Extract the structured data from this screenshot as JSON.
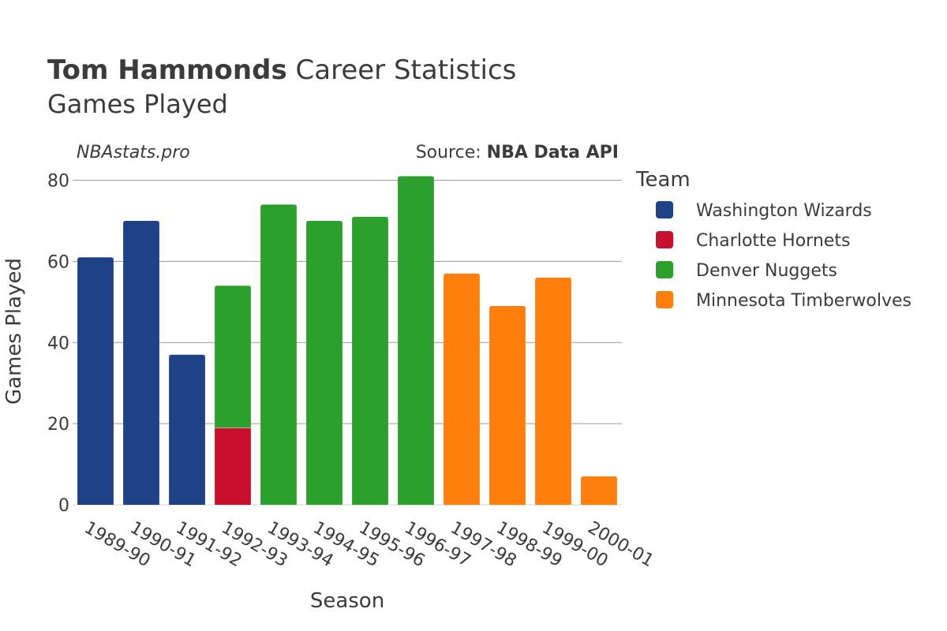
{
  "chart_data": {
    "type": "bar",
    "stacked": true,
    "title_bold": "Tom Hammonds",
    "title_rest": " Career Statistics",
    "subtitle": "Games Played",
    "watermark": "NBAstats.pro",
    "source_prefix": "Source: ",
    "source_name": "NBA Data API",
    "xlabel": "Season",
    "ylabel": "Games Played",
    "ylim": [
      0,
      84
    ],
    "yticks": [
      0,
      20,
      40,
      60,
      80
    ],
    "grid": true,
    "legend_title": "Team",
    "legend_position": "right",
    "categories": [
      "1989-90",
      "1990-91",
      "1991-92",
      "1992-93",
      "1993-94",
      "1994-95",
      "1995-96",
      "1996-97",
      "1997-98",
      "1998-99",
      "1999-00",
      "2000-01"
    ],
    "series": [
      {
        "name": "Washington Wizards",
        "color": "#1f4287",
        "values": [
          61,
          70,
          37,
          0,
          0,
          0,
          0,
          0,
          0,
          0,
          0,
          0
        ]
      },
      {
        "name": "Charlotte Hornets",
        "color": "#c8102e",
        "values": [
          0,
          0,
          0,
          19,
          0,
          0,
          0,
          0,
          0,
          0,
          0,
          0
        ]
      },
      {
        "name": "Denver Nuggets",
        "color": "#2ca02c",
        "values": [
          0,
          0,
          0,
          35,
          74,
          70,
          71,
          81,
          0,
          0,
          0,
          0
        ]
      },
      {
        "name": "Minnesota Timberwolves",
        "color": "#ff7f0e",
        "values": [
          0,
          0,
          0,
          0,
          0,
          0,
          0,
          0,
          57,
          49,
          56,
          7
        ]
      }
    ]
  }
}
